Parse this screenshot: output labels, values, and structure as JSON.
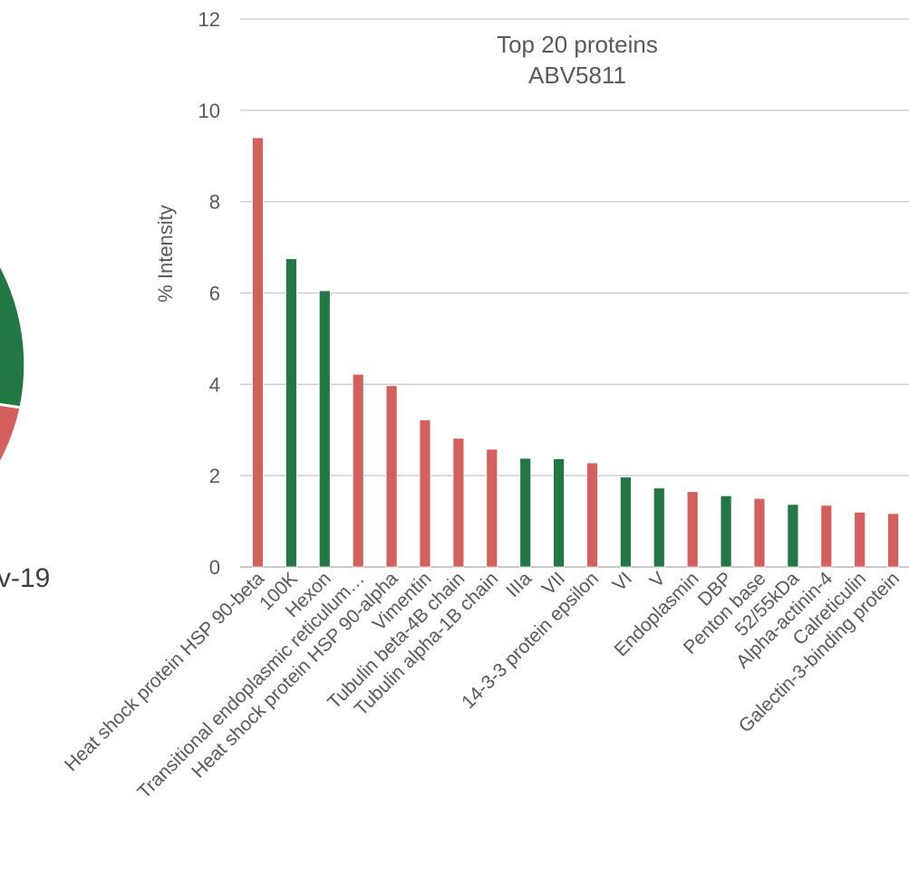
{
  "left_panel": {
    "label_fragment": "v-19",
    "colors": {
      "green": "#217844",
      "red": "#d35f5f"
    }
  },
  "chart_data": {
    "type": "bar",
    "title": "Top 20 proteins",
    "subtitle": "ABV5811",
    "xlabel": "",
    "ylabel": "% Intensity",
    "ylim": [
      0,
      12
    ],
    "yticks": [
      0,
      2,
      4,
      6,
      8,
      10,
      12
    ],
    "grid": true,
    "legend": "none",
    "categories": [
      "Heat shock protein HSP 90-beta",
      "100K",
      "Hexon",
      "Transitional endoplasmic reticulum…",
      "Heat shock protein HSP 90-alpha",
      "Vimentin",
      "Tubulin beta-4B chain",
      "Tubulin alpha-1B chain",
      "IIIa",
      "VII",
      "14-3-3 protein epsilon",
      "VI",
      "V",
      "Endoplasmin",
      "DBP",
      "Penton base",
      "52/55kDa",
      "Alpha-actinin-4",
      "Calreticulin",
      "Galectin-3-binding protein"
    ],
    "values": [
      9.4,
      6.75,
      6.05,
      4.22,
      3.97,
      3.22,
      2.82,
      2.58,
      2.38,
      2.37,
      2.28,
      1.97,
      1.73,
      1.65,
      1.56,
      1.5,
      1.37,
      1.35,
      1.2,
      1.17
    ],
    "bar_colors": [
      "#d35f5f",
      "#217844",
      "#217844",
      "#d35f5f",
      "#d35f5f",
      "#d35f5f",
      "#d35f5f",
      "#d35f5f",
      "#217844",
      "#217844",
      "#d35f5f",
      "#217844",
      "#217844",
      "#d35f5f",
      "#217844",
      "#d35f5f",
      "#217844",
      "#d35f5f",
      "#d35f5f",
      "#d35f5f"
    ]
  }
}
